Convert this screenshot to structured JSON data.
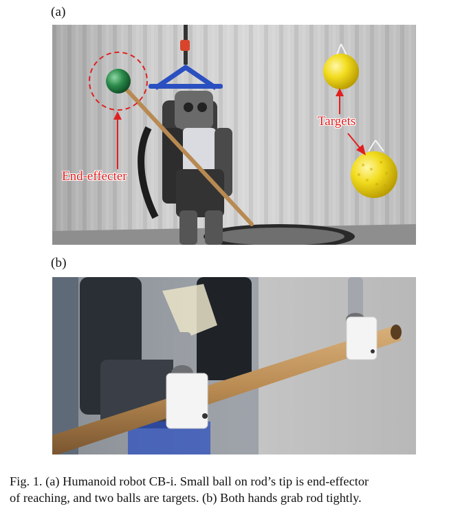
{
  "figure": {
    "panel_a_label": "(a)",
    "panel_b_label": "(b)",
    "annotations": {
      "end_effecter": "End-effecter",
      "targets": "Targets"
    },
    "caption_line1": "Fig. 1.   (a) Humanoid robot CB-i. Small ball on rod’s tip is end-effector",
    "caption_line2": "of reaching, and two balls are targets. (b) Both hands grab rod tightly."
  },
  "colors": {
    "annotation_red": "#e02020",
    "target_yellow": "#f2dc1e",
    "end_effector_green": "#2a8a4a",
    "rod_brown": "#b88a52",
    "curtain_grey": "#c9c9c9"
  }
}
